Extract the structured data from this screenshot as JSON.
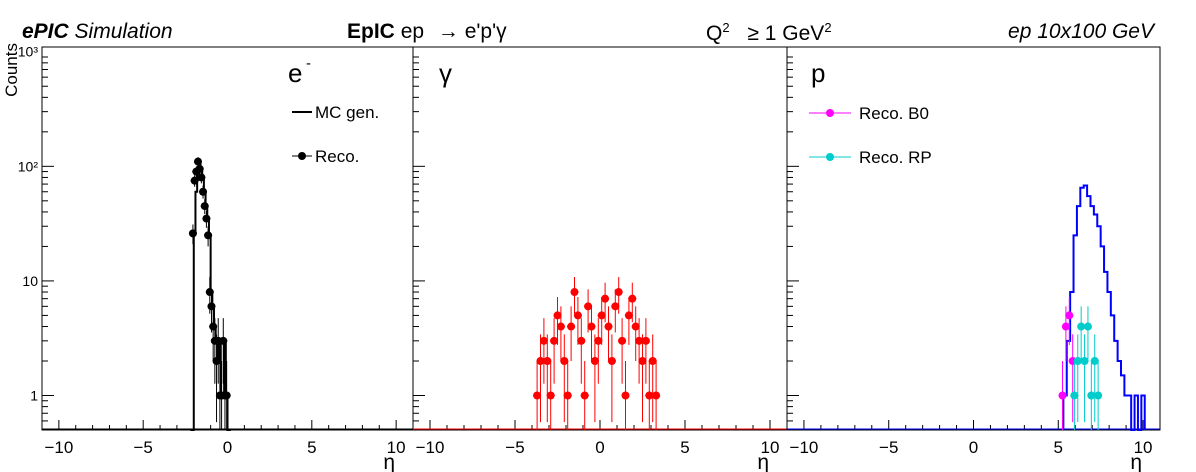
{
  "header": {
    "experiment": "ePIC",
    "simulation": "Simulation",
    "generator": "EpIC",
    "beam": "ep",
    "reaction": "→ e'p'γ",
    "q2_label": "Q",
    "q2_power": "2",
    "q2_cut": "≥ 1 GeV",
    "q2_cut_power": "2",
    "energy": "ep 10x100 GeV"
  },
  "chart_data": [
    {
      "type": "histogram",
      "panel": "e-",
      "label": "e",
      "label_sup": "-",
      "xlabel": "η",
      "ylabel": "Counts",
      "xlim": [
        -11,
        11
      ],
      "ylim": [
        0.5,
        1100
      ],
      "log_y": true,
      "xticks": [
        -10,
        -5,
        0,
        5,
        10
      ],
      "yticks": [
        1,
        10,
        100,
        1000
      ],
      "ytick_labels": [
        "1",
        "10",
        "10²",
        "10³"
      ],
      "legend": [
        {
          "label": "MC gen.",
          "style": "line",
          "color": "#000000"
        },
        {
          "label": "Reco.",
          "style": "marker",
          "color": "#000000"
        }
      ],
      "series": [
        {
          "name": "MC gen.",
          "style": "step",
          "color": "#000000",
          "x": [
            -2.2,
            -2.0,
            -1.9,
            -1.8,
            -1.7,
            -1.6,
            -1.5,
            -1.4,
            -1.3,
            -1.2,
            -1.1,
            -1.0,
            -0.9,
            -0.8,
            -0.7,
            -0.6,
            -0.5,
            -0.4,
            -0.3,
            -0.2,
            -0.1,
            0.0
          ],
          "y": [
            0,
            26,
            60,
            90,
            110,
            95,
            80,
            60,
            45,
            35,
            25,
            8,
            6,
            4,
            3,
            2,
            3,
            1,
            1,
            3,
            1,
            0
          ]
        },
        {
          "name": "Reco.",
          "style": "points",
          "color": "#000000",
          "x": [
            -2.05,
            -1.95,
            -1.85,
            -1.75,
            -1.65,
            -1.55,
            -1.45,
            -1.35,
            -1.25,
            -1.15,
            -1.05,
            -0.95,
            -0.85,
            -0.75,
            -0.65,
            -0.55,
            -0.45,
            -0.35,
            -0.25,
            -0.15,
            -0.05
          ],
          "y": [
            26,
            75,
            90,
            110,
            95,
            80,
            60,
            45,
            35,
            25,
            8,
            6,
            4,
            3,
            2,
            3,
            1,
            1,
            3,
            1,
            1
          ]
        }
      ]
    },
    {
      "type": "histogram",
      "panel": "gamma",
      "label": "γ",
      "xlabel": "η",
      "xlim": [
        -11,
        11
      ],
      "ylim": [
        0.5,
        1100
      ],
      "log_y": true,
      "xticks": [
        -10,
        -5,
        0,
        5,
        10
      ],
      "series": [
        {
          "name": "",
          "style": "points",
          "color": "#ff0000",
          "x": [
            -3.7,
            -3.5,
            -3.3,
            -3.1,
            -2.9,
            -2.7,
            -2.5,
            -2.3,
            -2.1,
            -1.9,
            -1.7,
            -1.5,
            -1.3,
            -1.1,
            -0.9,
            -0.7,
            -0.5,
            -0.3,
            -0.1,
            0.1,
            0.3,
            0.5,
            0.7,
            0.9,
            1.1,
            1.3,
            1.5,
            1.7,
            1.9,
            2.1,
            2.3,
            2.5,
            2.7,
            2.9,
            3.1,
            3.3
          ],
          "y": [
            1,
            2,
            3,
            2,
            1,
            3,
            5,
            4,
            2,
            1,
            4,
            8,
            5,
            3,
            1,
            6,
            4,
            2,
            3,
            5,
            7,
            4,
            2,
            6,
            8,
            3,
            1,
            5,
            7,
            4,
            3,
            2,
            3,
            1,
            2,
            1
          ]
        }
      ]
    },
    {
      "type": "histogram",
      "panel": "p",
      "label": "p",
      "xlabel": "η",
      "xlim": [
        -11,
        11
      ],
      "ylim": [
        0.5,
        1100
      ],
      "log_y": true,
      "xticks": [
        -10,
        -5,
        0,
        5,
        10
      ],
      "legend": [
        {
          "label": "Reco. B0",
          "style": "marker",
          "color": "#ff00ff"
        },
        {
          "label": "Reco. RP",
          "style": "marker",
          "color": "#00cccc"
        }
      ],
      "series": [
        {
          "name": "",
          "style": "step",
          "color": "#0000ff",
          "x": [
            5.3,
            5.5,
            5.7,
            5.9,
            6.1,
            6.3,
            6.5,
            6.7,
            6.9,
            7.1,
            7.3,
            7.5,
            7.7,
            7.9,
            8.1,
            8.3,
            8.5,
            8.7,
            8.9,
            9.1,
            9.3,
            9.5,
            9.7,
            9.9
          ],
          "y": [
            1,
            3,
            8,
            25,
            45,
            65,
            68,
            55,
            45,
            38,
            30,
            20,
            12,
            8,
            5,
            3,
            2,
            1.5,
            1,
            1,
            0,
            1,
            0,
            1
          ]
        },
        {
          "name": "Reco. B0",
          "style": "points",
          "color": "#ff00ff",
          "x": [
            5.25,
            5.45,
            5.65,
            5.85
          ],
          "y": [
            1,
            4,
            5,
            2
          ]
        },
        {
          "name": "Reco. RP",
          "style": "points",
          "color": "#00cccc",
          "x": [
            5.95,
            6.15,
            6.35,
            6.55,
            6.75,
            6.95,
            7.15,
            7.35
          ],
          "y": [
            1,
            2,
            4,
            2,
            4,
            1,
            2,
            1
          ]
        }
      ]
    }
  ]
}
